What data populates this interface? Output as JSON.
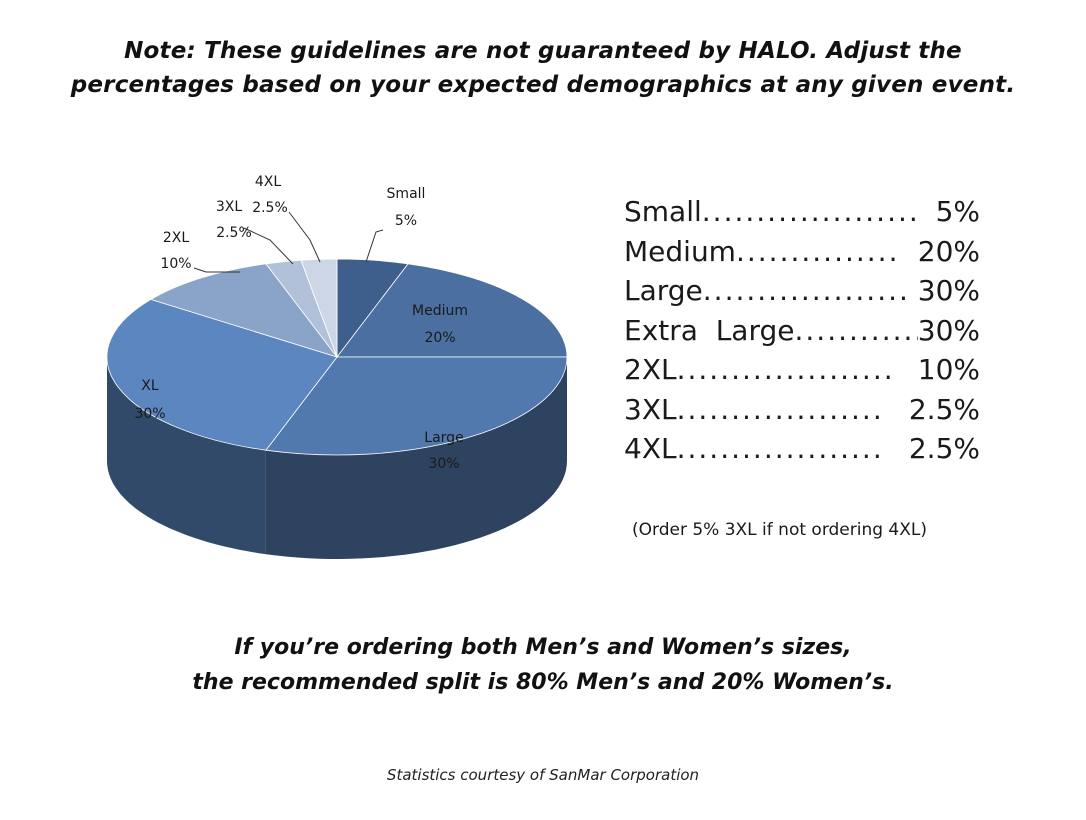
{
  "header": {
    "line1": "Note: These guidelines are not guaranteed by HALO. Adjust the",
    "line2": "percentages based on your expected demographics at any given event."
  },
  "chart_data": {
    "type": "pie",
    "style": "3d",
    "slices": [
      {
        "name": "Small",
        "value": 5,
        "label": "5%",
        "color": "#3e5f8c"
      },
      {
        "name": "Medium",
        "value": 20,
        "label": "20%",
        "color": "#4a6fa0"
      },
      {
        "name": "Large",
        "value": 30,
        "label": "30%",
        "color": "#5179ae"
      },
      {
        "name": "XL",
        "value": 30,
        "label": "30%",
        "color": "#5b86bf"
      },
      {
        "name": "2XL",
        "value": 10,
        "label": "10%",
        "color": "#8aa3c8"
      },
      {
        "name": "3XL",
        "value": 2.5,
        "label": "2.5%",
        "color": "#b2c1da"
      },
      {
        "name": "4XL",
        "value": 2.5,
        "label": "2.5%",
        "color": "#cdd6e6"
      }
    ]
  },
  "size_list": [
    {
      "name": "Small",
      "dots": "....................",
      "value": "5%"
    },
    {
      "name": "Medium",
      "dots": "...............",
      "value": "20%"
    },
    {
      "name": "Large",
      "dots": "...................",
      "value": "30%"
    },
    {
      "name": "Extra  Large",
      "dots": "............",
      "value": "30%"
    },
    {
      "name": "2XL",
      "dots": "....................",
      "value": "10%"
    },
    {
      "name": "3XL",
      "dots": "...................",
      "value": "2.5%"
    },
    {
      "name": "4XL",
      "dots": "...................",
      "value": "2.5%"
    }
  ],
  "order_note": "(Order 5% 3XL if not ordering 4XL)",
  "split": {
    "line1": "If you’re ordering both Men’s and Women’s sizes,",
    "line2": "the recommended split is 80% Men’s and 20% Women’s."
  },
  "credit": "Statistics courtesy of SanMar Corporation"
}
